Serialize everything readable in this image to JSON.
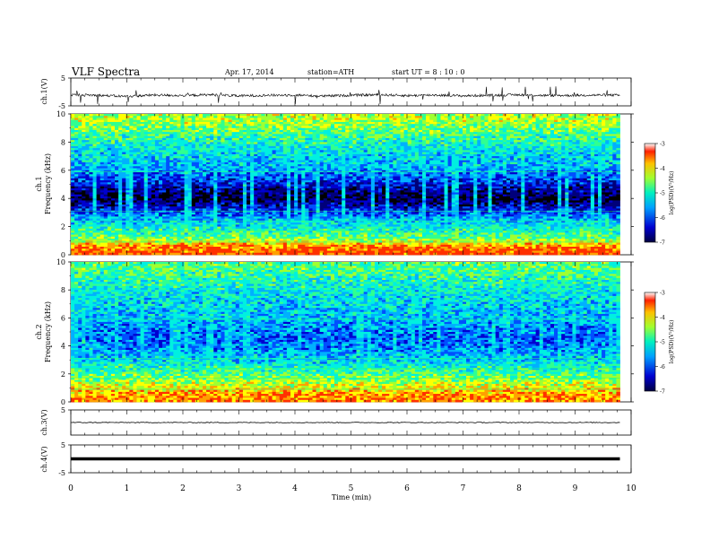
{
  "header": {
    "title": "VLF Spectra",
    "date": "Apr. 17, 2014",
    "station": "station=ATH",
    "start_ut": "start UT =  8 : 10 : 0"
  },
  "chart_data": [
    {
      "type": "line",
      "panel": "ch1-waveform",
      "ylabel": "ch.1(V)",
      "ylim": [
        -5,
        5
      ],
      "yticks": [
        5,
        -5
      ],
      "x": [
        0,
        0.5,
        1,
        1.5,
        2,
        2.5,
        3,
        3.5,
        4,
        4.5,
        5,
        5.5,
        6,
        6.5,
        7,
        7.5,
        8,
        8.5,
        9,
        9.5,
        9.8
      ],
      "y": [
        -1.0,
        -1.2,
        -1.6,
        -1.1,
        -1.3,
        -1.0,
        -1.4,
        -1.2,
        -1.1,
        -1.5,
        -1.2,
        -1.0,
        -1.3,
        -1.1,
        -1.4,
        -1.2,
        -1.0,
        -1.3,
        -1.2,
        -1.1,
        -1.2
      ],
      "xlim": [
        0,
        10
      ]
    },
    {
      "type": "heatmap",
      "panel": "ch1-spectrogram",
      "ylabel": "ch.1 Frequency (kHz)",
      "ylim": [
        0,
        10
      ],
      "yticks": [
        0,
        2,
        4,
        6,
        8,
        10
      ],
      "xlim": [
        0,
        10
      ],
      "data_xmax": 9.8,
      "colorbar": {
        "label": "log(PSD)(V²/Hz)",
        "range": [
          -7,
          -3
        ],
        "ticks": [
          -3,
          -4,
          -5,
          -6,
          -7
        ]
      },
      "bands": [
        {
          "f_khz": 0.3,
          "log_psd": -3.2
        },
        {
          "f_khz": 0.7,
          "log_psd": -3.6
        },
        {
          "f_khz": 1.2,
          "log_psd": -4.5
        },
        {
          "f_khz": 2.5,
          "log_psd": -5.3
        },
        {
          "f_khz": 4.0,
          "log_psd": -6.7
        },
        {
          "f_khz": 6.0,
          "log_psd": -5.4
        },
        {
          "f_khz": 8.0,
          "log_psd": -4.9
        },
        {
          "f_khz": 9.5,
          "log_psd": -4.2
        }
      ]
    },
    {
      "type": "heatmap",
      "panel": "ch2-spectrogram",
      "ylabel": "ch.2 Frequency (kHz)",
      "ylim": [
        0,
        10
      ],
      "yticks": [
        0,
        2,
        4,
        6,
        8,
        10
      ],
      "xlim": [
        0,
        10
      ],
      "data_xmax": 9.8,
      "colorbar": {
        "label": "log(PSD)(V²/Hz)",
        "range": [
          -7,
          -3
        ],
        "ticks": [
          -3,
          -4,
          -5,
          -6,
          -7
        ]
      },
      "bands": [
        {
          "f_khz": 0.5,
          "log_psd": -3.5
        },
        {
          "f_khz": 1.5,
          "log_psd": -4.3
        },
        {
          "f_khz": 3.0,
          "log_psd": -5.2
        },
        {
          "f_khz": 4.5,
          "log_psd": -5.7
        },
        {
          "f_khz": 6.0,
          "log_psd": -5.3
        },
        {
          "f_khz": 8.0,
          "log_psd": -5.0
        },
        {
          "f_khz": 9.5,
          "log_psd": -4.6
        }
      ]
    },
    {
      "type": "line",
      "panel": "ch3-waveform",
      "ylabel": "ch.3(V)",
      "ylim": [
        -5,
        5
      ],
      "yticks": [
        5
      ],
      "x": [
        0,
        9.8
      ],
      "y": [
        0,
        0
      ],
      "xlim": [
        0,
        10
      ]
    },
    {
      "type": "line",
      "panel": "ch4-waveform",
      "ylabel": "ch.4(V)",
      "ylim": [
        -5,
        5
      ],
      "yticks": [
        5,
        -5
      ],
      "x": [
        0,
        9.8
      ],
      "y": [
        0,
        0
      ],
      "xlim": [
        0,
        10
      ],
      "xlabel": "Time (min)",
      "xticks": [
        0,
        1,
        2,
        3,
        4,
        5,
        6,
        7,
        8,
        9,
        10
      ]
    }
  ],
  "colors": {
    "colormap": [
      "#000000",
      "#00007a",
      "#0000d0",
      "#0050ff",
      "#00b0ff",
      "#00f0e0",
      "#30ff90",
      "#a0ff30",
      "#ffff00",
      "#ffa000",
      "#ff3000",
      "#ffffff"
    ],
    "trace": "#000000"
  }
}
